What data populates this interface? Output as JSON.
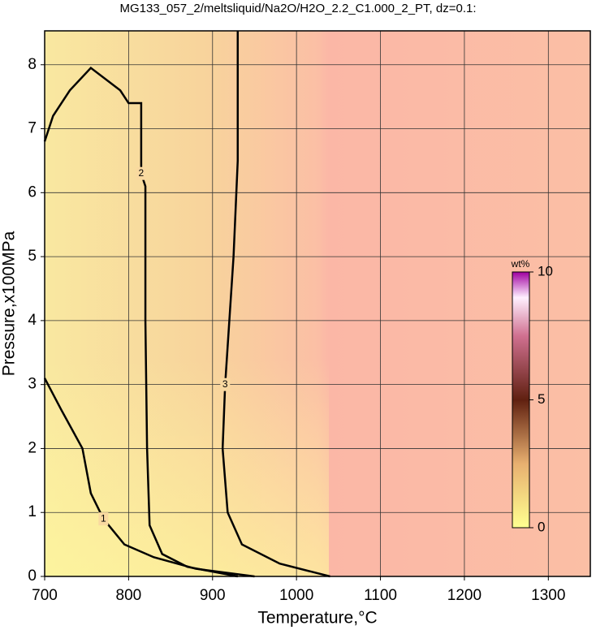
{
  "chart_data": {
    "type": "contour",
    "title": "MG133_057_2/meltsliquid/Na2O/H2O_2.2_C1.000_2_PT, dz=0.1:",
    "x_label": "Temperature,°C",
    "y_label": "Pressure,x100MPa",
    "xlim": [
      700,
      1350
    ],
    "ylim": [
      0,
      8.53
    ],
    "xticks": [
      700,
      800,
      900,
      1000,
      1100,
      1200,
      1300
    ],
    "yticks": [
      0,
      1,
      2,
      3,
      4,
      5,
      6,
      7,
      8
    ],
    "grid": true,
    "contours": [
      {
        "level": 1,
        "color": "#000000",
        "x": [
          700,
          720,
          745,
          755,
          770,
          795,
          830,
          880,
          950
        ],
        "y": [
          3.1,
          2.6,
          2.0,
          1.3,
          0.9,
          0.5,
          0.3,
          0.12,
          0.0
        ]
      },
      {
        "level": 2,
        "color": "#000000",
        "x": [
          930,
          870,
          840,
          825,
          822,
          820,
          820,
          815,
          815,
          800,
          790,
          755,
          730,
          710,
          700
        ],
        "y": [
          0.0,
          0.15,
          0.35,
          0.8,
          2.0,
          4.0,
          6.1,
          6.3,
          7.4,
          7.4,
          7.6,
          7.95,
          7.6,
          7.2,
          6.8
        ]
      },
      {
        "level": 3,
        "color": "#000000",
        "x": [
          1040,
          980,
          935,
          918,
          912,
          915,
          920,
          925,
          930,
          930
        ],
        "y": [
          0.0,
          0.2,
          0.5,
          1.0,
          2.0,
          3.0,
          4.0,
          5.0,
          6.5,
          8.53
        ]
      }
    ],
    "colorbar": {
      "title": "wt%",
      "lim": [
        0,
        10
      ],
      "ticks": [
        0,
        5,
        10
      ]
    }
  }
}
